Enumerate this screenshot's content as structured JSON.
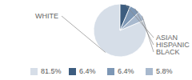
{
  "chart_data": {
    "type": "pie",
    "categories": [
      "WHITE",
      "ASIAN",
      "HISPANIC",
      "BLACK"
    ],
    "values": [
      81.5,
      6.4,
      6.4,
      5.8
    ],
    "value_labels": [
      "81.5%",
      "6.4%",
      "6.4%",
      "5.8%"
    ],
    "colors": [
      "#d6dee8",
      "#3d5d7f",
      "#7d97b5",
      "#a8b9ce"
    ]
  }
}
